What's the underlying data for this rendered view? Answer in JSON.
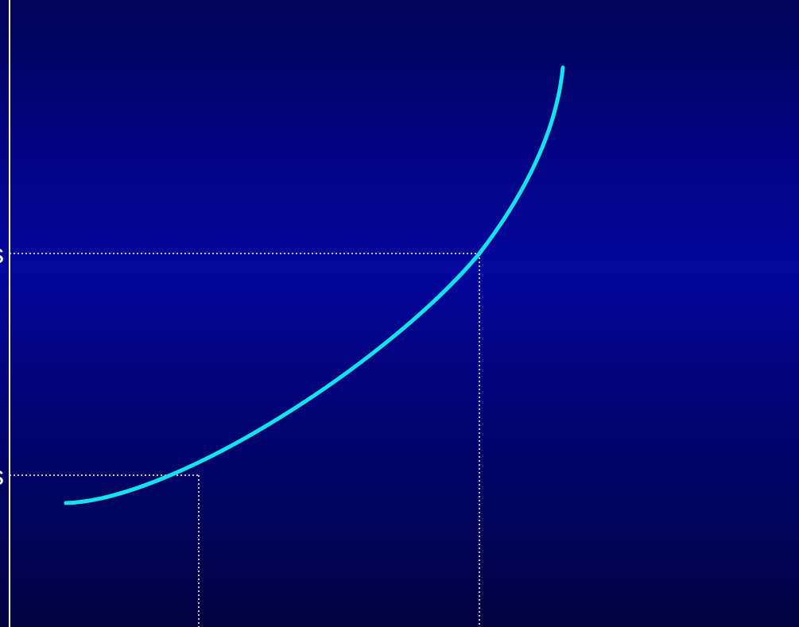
{
  "diagram": {
    "colors": {
      "background_top": "#020355",
      "background_middle": "#04089c",
      "background_bottom": "#010240",
      "curve": "#12e3ee",
      "axis": "#ffffff",
      "guide_lines": "#ffffff"
    },
    "axis_glyphs": [
      {
        "text": "s"
      },
      {
        "text": "s"
      }
    ]
  }
}
